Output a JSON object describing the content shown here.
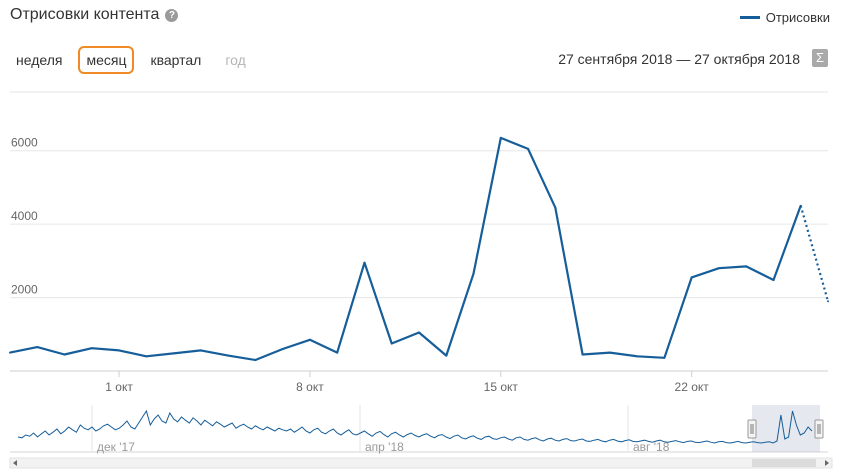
{
  "header": {
    "title": "Отрисовки контента",
    "help_icon": "?",
    "legend_label": "Отрисовки"
  },
  "periods": [
    {
      "label": "неделя",
      "state": "normal"
    },
    {
      "label": "месяц",
      "state": "active"
    },
    {
      "label": "квартал",
      "state": "normal"
    },
    {
      "label": "год",
      "state": "disabled"
    }
  ],
  "date_range": "27 сентября 2018 — 27 октября 2018",
  "sigma_label": "Σ",
  "colors": {
    "series": "#165e9a",
    "active_border": "#f08a24",
    "grid": "#e6e6e6"
  },
  "chart_data": {
    "type": "line",
    "x": [
      "2018-09-27",
      "2018-09-28",
      "2018-09-29",
      "2018-09-30",
      "2018-10-01",
      "2018-10-02",
      "2018-10-03",
      "2018-10-04",
      "2018-10-05",
      "2018-10-06",
      "2018-10-07",
      "2018-10-08",
      "2018-10-09",
      "2018-10-10",
      "2018-10-11",
      "2018-10-12",
      "2018-10-13",
      "2018-10-14",
      "2018-10-15",
      "2018-10-16",
      "2018-10-17",
      "2018-10-18",
      "2018-10-19",
      "2018-10-20",
      "2018-10-21",
      "2018-10-22",
      "2018-10-23",
      "2018-10-24",
      "2018-10-25",
      "2018-10-26",
      "2018-10-27"
    ],
    "series": [
      {
        "name": "Отрисовки",
        "values": [
          500,
          650,
          450,
          620,
          560,
          400,
          480,
          560,
          420,
          300,
          600,
          850,
          500,
          2950,
          750,
          1050,
          420,
          2650,
          6350,
          6050,
          4450,
          450,
          500,
          400,
          360,
          2550,
          2800,
          2850,
          2480,
          4500,
          1900
        ]
      }
    ],
    "yticks": [
      "2000",
      "4000",
      "6000"
    ],
    "ylim": [
      0,
      7600
    ],
    "xticks": [
      {
        "label": "1 окт",
        "x": "2018-10-01"
      },
      {
        "label": "8 окт",
        "x": "2018-10-08"
      },
      {
        "label": "15 окт",
        "x": "2018-10-15"
      },
      {
        "label": "22 окт",
        "x": "2018-10-22"
      }
    ],
    "grid": true,
    "legend": "top-right",
    "navigator": {
      "labels": [
        "дек '17",
        "апр '18",
        "авг '18"
      ],
      "values": [
        30,
        28,
        35,
        32,
        40,
        30,
        38,
        45,
        35,
        42,
        50,
        38,
        45,
        55,
        48,
        42,
        60,
        52,
        48,
        55,
        45,
        50,
        58,
        62,
        55,
        48,
        52,
        60,
        70,
        55,
        50,
        65,
        80,
        95,
        60,
        75,
        85,
        70,
        65,
        90,
        75,
        68,
        80,
        72,
        65,
        78,
        70,
        60,
        72,
        65,
        58,
        68,
        62,
        55,
        60,
        65,
        52,
        58,
        62,
        55,
        50,
        58,
        52,
        48,
        55,
        50,
        45,
        52,
        48,
        45,
        50,
        42,
        48,
        55,
        45,
        40,
        48,
        52,
        42,
        38,
        45,
        50,
        40,
        35,
        42,
        48,
        38,
        35,
        40,
        45,
        38,
        32,
        40,
        44,
        36,
        30,
        38,
        42,
        35,
        30,
        36,
        40,
        34,
        30,
        35,
        38,
        32,
        28,
        34,
        36,
        30,
        26,
        32,
        35,
        28,
        25,
        30,
        33,
        27,
        24,
        30,
        32,
        26,
        24,
        28,
        30,
        25,
        22,
        28,
        30,
        24,
        22,
        26,
        28,
        23,
        20,
        25,
        27,
        22,
        20,
        24,
        26,
        21,
        20,
        23,
        25,
        20,
        19,
        22,
        24,
        20,
        18,
        22,
        24,
        20,
        18,
        21,
        23,
        19,
        18,
        20,
        22,
        19,
        17,
        20,
        22,
        18,
        17,
        19,
        21,
        18,
        16,
        19,
        20,
        17,
        16,
        18,
        20,
        17,
        15,
        18,
        19,
        16,
        15,
        17,
        19,
        16,
        15,
        17,
        18,
        16,
        15,
        17,
        18,
        15,
        20,
        85,
        25,
        30,
        95,
        60,
        35,
        40,
        55,
        45
      ]
    }
  }
}
